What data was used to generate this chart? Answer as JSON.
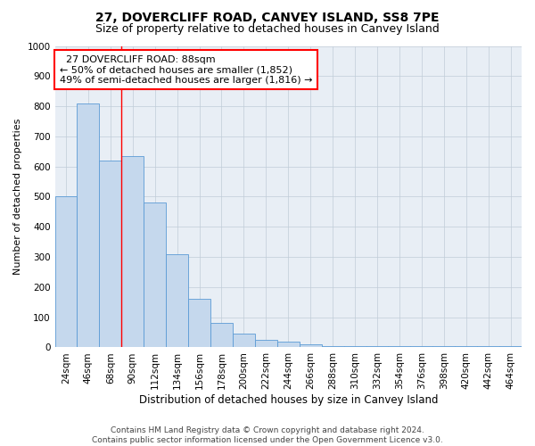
{
  "title": "27, DOVERCLIFF ROAD, CANVEY ISLAND, SS8 7PE",
  "subtitle": "Size of property relative to detached houses in Canvey Island",
  "xlabel": "Distribution of detached houses by size in Canvey Island",
  "ylabel": "Number of detached properties",
  "footnote1": "Contains HM Land Registry data © Crown copyright and database right 2024.",
  "footnote2": "Contains public sector information licensed under the Open Government Licence v3.0.",
  "categories": [
    "24sqm",
    "46sqm",
    "68sqm",
    "90sqm",
    "112sqm",
    "134sqm",
    "156sqm",
    "178sqm",
    "200sqm",
    "222sqm",
    "244sqm",
    "266sqm",
    "288sqm",
    "310sqm",
    "332sqm",
    "354sqm",
    "376sqm",
    "398sqm",
    "420sqm",
    "442sqm",
    "464sqm"
  ],
  "values": [
    500,
    810,
    620,
    635,
    480,
    310,
    160,
    80,
    45,
    25,
    20,
    10,
    5,
    5,
    5,
    3,
    3,
    3,
    3,
    3,
    3
  ],
  "bar_color": "#c5d8ed",
  "bar_edge_color": "#5b9bd5",
  "annotation_title": "27 DOVERCLIFF ROAD: 88sqm",
  "annotation_line1": "← 50% of detached houses are smaller (1,852)",
  "annotation_line2": "49% of semi-detached houses are larger (1,816) →",
  "vline_x": 2.5,
  "ylim": [
    0,
    1000
  ],
  "yticks": [
    0,
    100,
    200,
    300,
    400,
    500,
    600,
    700,
    800,
    900,
    1000
  ],
  "axes_bg_color": "#e8eef5",
  "background_color": "#ffffff",
  "grid_color": "#c0ccd8",
  "title_fontsize": 10,
  "subtitle_fontsize": 9,
  "xlabel_fontsize": 8.5,
  "ylabel_fontsize": 8,
  "tick_fontsize": 7.5,
  "annotation_fontsize": 8,
  "footnote_fontsize": 6.5
}
